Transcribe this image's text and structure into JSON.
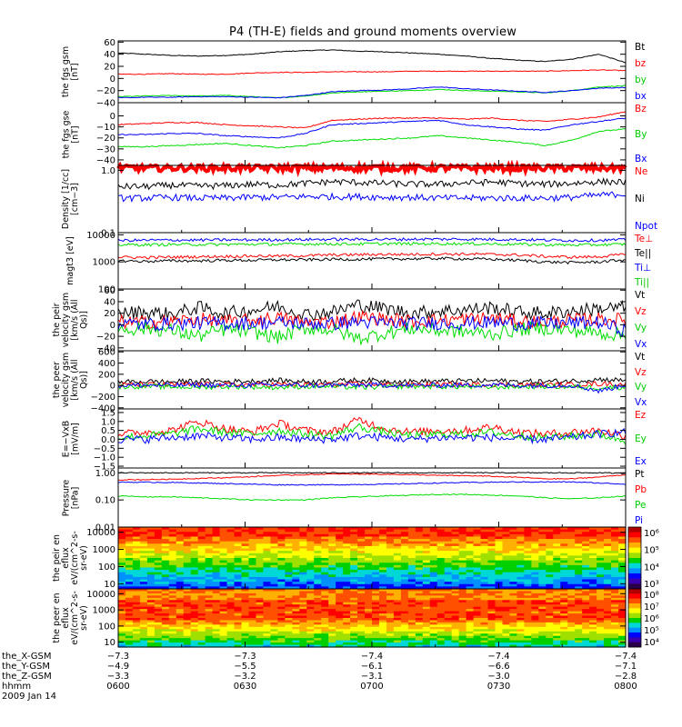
{
  "title": "P4 (TH-E) fields and ground moments overview",
  "colors": {
    "black": "#000000",
    "red": "#ff0000",
    "green": "#00dd00",
    "blue": "#0000ff"
  },
  "chart_data": [
    {
      "type": "line",
      "id": "fgs_gsm",
      "ylabel": "the fgs gsm [nT]",
      "ytick_labels": [
        "60",
        "40",
        "20",
        "0",
        "−20",
        "−40"
      ],
      "ylim": [
        -40,
        62
      ],
      "series": [
        {
          "name": "Bt",
          "color": "#000000",
          "values": [
            42,
            40,
            38,
            37,
            38,
            40,
            44,
            46,
            47,
            45,
            44,
            42,
            40,
            37,
            33,
            30,
            28,
            32,
            40,
            26
          ]
        },
        {
          "name": "bz",
          "color": "#ff0000",
          "values": [
            7,
            7,
            8,
            7,
            7,
            9,
            10,
            10,
            11,
            11,
            11,
            12,
            12,
            12,
            12,
            12,
            12,
            13,
            14,
            13
          ]
        },
        {
          "name": "by",
          "color": "#00dd00",
          "values": [
            -30,
            -29,
            -28,
            -29,
            -28,
            -30,
            -32,
            -29,
            -24,
            -22,
            -21,
            -20,
            -18,
            -20,
            -21,
            -22,
            -24,
            -20,
            -14,
            -12
          ]
        },
        {
          "name": "bx",
          "color": "#0000ff",
          "values": [
            -32,
            -31,
            -31,
            -30,
            -30,
            -31,
            -32,
            -28,
            -22,
            -20,
            -19,
            -17,
            -14,
            -17,
            -19,
            -21,
            -23,
            -20,
            -16,
            -15
          ]
        }
      ]
    },
    {
      "type": "line",
      "id": "fgs_gse",
      "ylabel": "the fgs gse [nT]",
      "ytick_labels": [
        "0",
        "−10",
        "−20",
        "−30",
        "−40"
      ],
      "ylim": [
        -45,
        12
      ],
      "series": [
        {
          "name": "Bz",
          "color": "#ff0000",
          "values": [
            -8,
            -7,
            -6,
            -6,
            -8,
            -9,
            -10,
            -11,
            -4,
            -3,
            -2,
            -2,
            -2,
            -3,
            -2,
            -4,
            -5,
            -3,
            -1,
            4
          ]
        },
        {
          "name": "By",
          "color": "#00dd00",
          "values": [
            -28,
            -28,
            -27,
            -26,
            -25,
            -27,
            -29,
            -27,
            -23,
            -22,
            -21,
            -20,
            -18,
            -20,
            -22,
            -24,
            -27,
            -22,
            -14,
            -12
          ]
        },
        {
          "name": "Bx",
          "color": "#0000ff",
          "values": [
            -17,
            -17,
            -16,
            -16,
            -18,
            -19,
            -20,
            -16,
            -8,
            -7,
            -6,
            -5,
            -4,
            -8,
            -10,
            -12,
            -13,
            -8,
            -5,
            -2
          ]
        }
      ]
    },
    {
      "type": "line",
      "id": "density",
      "ylabel": "Density [1/cc] [cm−3]",
      "scale": "log",
      "ytick_labels": [
        "1.0",
        "0.1"
      ],
      "ylim": [
        0.1,
        1.2
      ],
      "series": [
        {
          "name": "Ne",
          "color": "#ff0000",
          "values": [
            1.1,
            1.1,
            1.1,
            1.1,
            1.1,
            1.1,
            1.1,
            1.1,
            1.1,
            1.1,
            1.1,
            1.1,
            1.1,
            1.1,
            1.1,
            1.1,
            1.1,
            1.1,
            1.1,
            1.1
          ]
        },
        {
          "name": "Ni",
          "color": "#000000",
          "values": [
            0.55,
            0.55,
            0.58,
            0.56,
            0.57,
            0.6,
            0.58,
            0.62,
            0.66,
            0.64,
            0.62,
            0.6,
            0.6,
            0.63,
            0.65,
            0.62,
            0.6,
            0.62,
            0.66,
            0.65
          ]
        },
        {
          "name": "Npot",
          "color": "#0000ff",
          "values": [
            0.36,
            0.36,
            0.37,
            0.36,
            0.36,
            0.37,
            0.37,
            0.38,
            0.38,
            0.38,
            0.37,
            0.37,
            0.36,
            0.36,
            0.36,
            0.36,
            0.36,
            0.37,
            0.4,
            0.42
          ]
        }
      ]
    },
    {
      "type": "line",
      "id": "magt3",
      "ylabel": "magt3 [eV]",
      "scale": "log",
      "ytick_labels": [
        "10000",
        "1000",
        "100"
      ],
      "ylim": [
        100,
        12000
      ],
      "series": [
        {
          "name": "Te⊥",
          "color": "#ff0000",
          "values": [
            1500,
            1450,
            1500,
            1550,
            1600,
            1650,
            1650,
            1700,
            1800,
            1850,
            1900,
            1900,
            1950,
            1950,
            1900,
            1800,
            1600,
            1500,
            1550,
            1900
          ]
        },
        {
          "name": "Te||",
          "color": "#000000",
          "values": [
            1100,
            1050,
            1100,
            1100,
            1150,
            1150,
            1200,
            1200,
            1250,
            1250,
            1300,
            1300,
            1350,
            1300,
            1250,
            1150,
            1000,
            950,
            1000,
            1200
          ]
        },
        {
          "name": "Ti⊥",
          "color": "#0000ff",
          "values": [
            6200,
            6300,
            6400,
            6400,
            6500,
            6500,
            6600,
            6700,
            6800,
            6800,
            6800,
            6900,
            6900,
            6900,
            6800,
            6700,
            6400,
            6200,
            6300,
            6600
          ]
        },
        {
          "name": "Ti||",
          "color": "#00dd00",
          "values": [
            4300,
            4300,
            4400,
            4400,
            4400,
            4500,
            4500,
            4600,
            4600,
            4600,
            4700,
            4700,
            4700,
            4700,
            4600,
            4500,
            4300,
            4200,
            4300,
            4500
          ]
        }
      ]
    },
    {
      "type": "line",
      "id": "peir_velocity",
      "ylabel": "the peir velocity gsm [km/s (All Qs)]",
      "ytick_labels": [
        "60",
        "40",
        "20",
        "0",
        "−20",
        "−40"
      ],
      "ylim": [
        -45,
        62
      ],
      "series": [
        {
          "name": "Vt",
          "color": "#000000",
          "values": [
            20,
            22,
            18,
            30,
            20,
            25,
            32,
            18,
            22,
            35,
            28,
            20,
            24,
            26,
            30,
            22,
            20,
            24,
            28,
            30
          ]
        },
        {
          "name": "Vz",
          "color": "#ff0000",
          "values": [
            5,
            4,
            6,
            10,
            5,
            8,
            12,
            4,
            5,
            14,
            10,
            6,
            8,
            10,
            12,
            6,
            5,
            8,
            10,
            8
          ]
        },
        {
          "name": "Vy",
          "color": "#00dd00",
          "values": [
            -8,
            -6,
            -10,
            -20,
            -8,
            -12,
            -22,
            -6,
            -8,
            -24,
            -14,
            -6,
            -10,
            -12,
            -16,
            -8,
            -6,
            -10,
            -14,
            -18
          ]
        },
        {
          "name": "Vx",
          "color": "#0000ff",
          "values": [
            2,
            1,
            2,
            3,
            2,
            3,
            4,
            2,
            2,
            5,
            3,
            2,
            3,
            3,
            4,
            2,
            2,
            3,
            4,
            -10
          ]
        }
      ]
    },
    {
      "type": "line",
      "id": "peer_velocity",
      "ylabel": "the peer velocity gsm [km/s (All Qs)]",
      "ytick_labels": [
        "600",
        "400",
        "200",
        "0",
        "−200",
        "−400"
      ],
      "ylim": [
        -420,
        620
      ],
      "series": [
        {
          "name": "Vt",
          "color": "#000000",
          "values": [
            60,
            70,
            65,
            80,
            70,
            75,
            90,
            70,
            75,
            95,
            80,
            70,
            75,
            80,
            85,
            70,
            70,
            80,
            110,
            90
          ]
        },
        {
          "name": "Vz",
          "color": "#ff0000",
          "values": [
            10,
            15,
            10,
            20,
            10,
            15,
            20,
            10,
            15,
            25,
            15,
            10,
            15,
            15,
            20,
            10,
            10,
            15,
            30,
            20
          ]
        },
        {
          "name": "Vy",
          "color": "#00dd00",
          "values": [
            -20,
            -15,
            -25,
            -30,
            -20,
            -25,
            -35,
            -15,
            -20,
            -35,
            -25,
            -15,
            -20,
            -25,
            -30,
            -20,
            -15,
            -25,
            -40,
            -30
          ]
        },
        {
          "name": "Vx",
          "color": "#0000ff",
          "values": [
            0,
            5,
            0,
            10,
            0,
            5,
            10,
            0,
            5,
            10,
            5,
            0,
            5,
            5,
            10,
            0,
            0,
            5,
            -100,
            10
          ]
        }
      ]
    },
    {
      "type": "line",
      "id": "e_field",
      "ylabel": "E=−VxB [mV/m]",
      "ytick_labels": [
        "1.5",
        "1.0",
        "0.5",
        "0.0",
        "−0.5",
        "−1.0",
        "−1.5"
      ],
      "ylim": [
        -1.6,
        1.7
      ],
      "series": [
        {
          "name": "Ez",
          "color": "#ff0000",
          "values": [
            0.3,
            0.4,
            0.5,
            1.0,
            0.6,
            0.4,
            0.9,
            0.5,
            0.4,
            1.1,
            0.6,
            0.4,
            0.5,
            0.5,
            0.7,
            0.4,
            0.3,
            0.4,
            0.5,
            0.2
          ]
        },
        {
          "name": "Ey",
          "color": "#00dd00",
          "values": [
            0.1,
            0.2,
            0.3,
            0.6,
            0.4,
            0.3,
            0.5,
            0.3,
            0.2,
            0.7,
            0.4,
            0.2,
            0.3,
            0.3,
            0.4,
            0.2,
            0.1,
            0.2,
            0.3,
            -0.1
          ]
        },
        {
          "name": "Ex",
          "color": "#0000ff",
          "values": [
            0.0,
            0.0,
            0.1,
            0.2,
            0.1,
            0.0,
            0.1,
            0.0,
            0.0,
            0.2,
            0.1,
            0.0,
            0.1,
            0.1,
            0.1,
            0.0,
            0.0,
            0.1,
            0.3,
            0.4
          ]
        }
      ]
    },
    {
      "type": "line",
      "id": "pressure",
      "ylabel": "Pressure [nPa]",
      "scale": "log",
      "ytick_labels": [
        "1.00",
        "0.10",
        "0.01"
      ],
      "ylim": [
        0.01,
        1.5
      ],
      "series": [
        {
          "name": "Pt",
          "color": "#000000",
          "values": [
            1.0,
            1.0,
            1.0,
            1.0,
            1.0,
            1.0,
            1.0,
            1.0,
            1.0,
            1.0,
            1.0,
            1.0,
            1.0,
            1.0,
            1.0,
            1.0,
            1.0,
            1.0,
            1.0,
            0.95
          ]
        },
        {
          "name": "Pb",
          "color": "#ff0000",
          "values": [
            0.55,
            0.56,
            0.58,
            0.62,
            0.66,
            0.72,
            0.8,
            0.85,
            0.9,
            0.9,
            0.88,
            0.85,
            0.8,
            0.78,
            0.74,
            0.68,
            0.6,
            0.6,
            0.7,
            0.85
          ]
        },
        {
          "name": "Pe",
          "color": "#00dd00",
          "values": [
            0.14,
            0.13,
            0.13,
            0.12,
            0.11,
            0.1,
            0.1,
            0.1,
            0.12,
            0.13,
            0.14,
            0.15,
            0.16,
            0.16,
            0.15,
            0.14,
            0.12,
            0.11,
            0.12,
            0.14
          ]
        },
        {
          "name": "Pi",
          "color": "#0000ff",
          "values": [
            0.45,
            0.45,
            0.44,
            0.42,
            0.4,
            0.38,
            0.36,
            0.36,
            0.36,
            0.37,
            0.38,
            0.4,
            0.42,
            0.44,
            0.45,
            0.46,
            0.46,
            0.46,
            0.42,
            0.38
          ]
        }
      ]
    },
    {
      "type": "heatmap",
      "id": "peir_en_eflux",
      "ylabel": "the peir en eflux eV/(cm^2-s-sr-eV)",
      "scale": "log",
      "ytick_labels": [
        "10000",
        "1000",
        "100",
        "10"
      ],
      "ylim": [
        5,
        20000
      ],
      "colorbar_ticks": [
        "10⁶",
        "10⁵",
        "10⁴",
        "10³"
      ]
    },
    {
      "type": "heatmap",
      "id": "peer_en_eflux",
      "ylabel": "the peer en eflux eV/(cm^2-s-sr-eV)",
      "scale": "log",
      "ytick_labels": [
        "10000",
        "1000",
        "100",
        "10"
      ],
      "ylim": [
        5,
        20000
      ],
      "colorbar_ticks": [
        "10⁸",
        "10⁷",
        "10⁶",
        "10⁵",
        "10⁴"
      ]
    }
  ],
  "bottom": {
    "rows": [
      {
        "label": "the_X-GSM",
        "values": [
          "−7.3",
          "−7.3",
          "−7.4",
          "−7.4",
          "−7.4"
        ]
      },
      {
        "label": "the_Y-GSM",
        "values": [
          "−4.9",
          "−5.5",
          "−6.1",
          "−6.6",
          "−7.1"
        ]
      },
      {
        "label": "the_Z-GSM",
        "values": [
          "−3.3",
          "−3.2",
          "−3.1",
          "−3.0",
          "−2.8"
        ]
      },
      {
        "label": "hhmm",
        "values": [
          "0600",
          "0630",
          "0700",
          "0730",
          "0800"
        ]
      }
    ],
    "date": "2009 Jan 14"
  }
}
